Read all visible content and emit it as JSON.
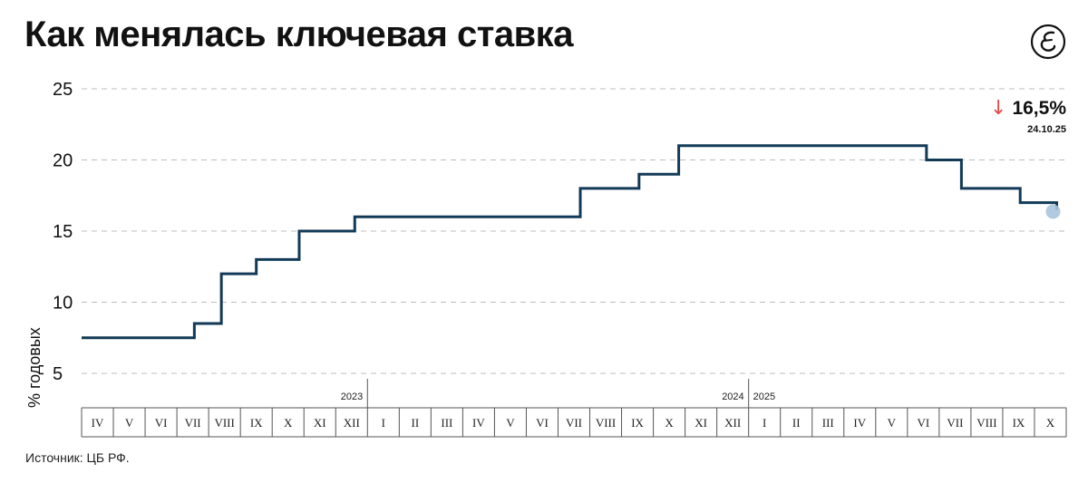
{
  "header": {
    "title": "Как менялась ключевая ставка",
    "logo_icon": "publication-logo-icon"
  },
  "footer": {
    "source": "Источник: ЦБ РФ."
  },
  "chart_data": {
    "type": "line",
    "step": true,
    "title": "Как менялась ключевая ставка",
    "ylabel": "% годовых",
    "xlabel": "",
    "ylim": [
      4,
      25
    ],
    "yticks": [
      5,
      10,
      15,
      20,
      25
    ],
    "grid": "dashed-horizontal",
    "line_color": "#123a57",
    "accent_color": "#e84a4a",
    "marker_color": "#a9c4dd",
    "x_months": [
      "IV",
      "V",
      "VI",
      "VII",
      "VIII",
      "IX",
      "X",
      "XI",
      "XII",
      "I",
      "II",
      "III",
      "IV",
      "V",
      "VI",
      "VII",
      "VIII",
      "IX",
      "X",
      "XI",
      "XII",
      "I",
      "II",
      "III",
      "IV",
      "V",
      "VI",
      "VII",
      "VIII",
      "IX",
      "X"
    ],
    "years": [
      {
        "label": "2023",
        "month_index": 9
      },
      {
        "label": "2024",
        "month_index": 21
      },
      {
        "label": "2025",
        "month_index": 21
      }
    ],
    "series": [
      {
        "points": [
          {
            "x": 0.0,
            "y": 7.5
          },
          {
            "x": 3.55,
            "y": 8.5
          },
          {
            "x": 4.4,
            "y": 12.0
          },
          {
            "x": 5.5,
            "y": 13.0
          },
          {
            "x": 6.85,
            "y": 15.0
          },
          {
            "x": 8.6,
            "y": 16.0
          },
          {
            "x": 15.7,
            "y": 18.0
          },
          {
            "x": 17.55,
            "y": 19.0
          },
          {
            "x": 18.8,
            "y": 21.0
          },
          {
            "x": 26.6,
            "y": 20.0
          },
          {
            "x": 27.7,
            "y": 18.0
          },
          {
            "x": 29.55,
            "y": 17.0
          },
          {
            "x": 30.7,
            "y": 16.5
          }
        ]
      }
    ],
    "last_value": {
      "label": "16,5%",
      "date": "24.10.25",
      "arrow": "↓",
      "direction": "down"
    }
  }
}
